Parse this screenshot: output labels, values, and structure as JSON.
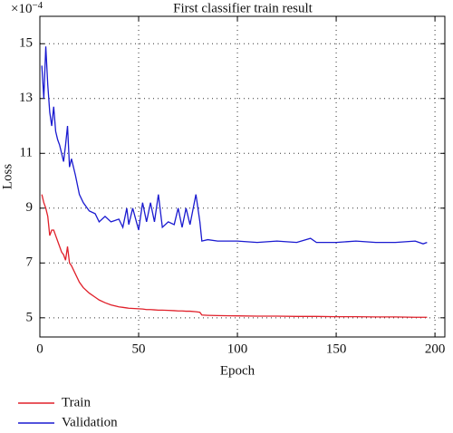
{
  "chart_data": {
    "type": "line",
    "title": "First classifier train result",
    "x_label": "Epoch",
    "y_label": "Loss",
    "y_offset_text": "×10",
    "y_offset_exponent": "−4",
    "x": [
      1,
      2,
      3,
      4,
      5,
      6,
      7,
      8,
      9,
      10,
      11,
      12,
      13,
      14,
      15,
      16,
      18,
      20,
      22,
      25,
      28,
      30,
      33,
      36,
      40,
      42,
      44,
      45,
      47,
      50,
      52,
      54,
      56,
      58,
      60,
      62,
      65,
      68,
      70,
      72,
      74,
      76,
      79,
      81,
      82,
      85,
      90,
      100,
      110,
      120,
      130,
      137,
      140,
      150,
      160,
      170,
      180,
      190,
      194,
      196
    ],
    "series": [
      {
        "name": "Train",
        "color": "#e0202a",
        "values": [
          9.5,
          9.2,
          9.0,
          8.7,
          8.0,
          8.2,
          8.2,
          8.0,
          7.8,
          7.6,
          7.4,
          7.3,
          7.1,
          7.6,
          7.0,
          6.9,
          6.6,
          6.3,
          6.1,
          5.9,
          5.75,
          5.65,
          5.55,
          5.47,
          5.4,
          5.38,
          5.36,
          5.35,
          5.34,
          5.33,
          5.32,
          5.3,
          5.3,
          5.29,
          5.28,
          5.28,
          5.27,
          5.26,
          5.25,
          5.25,
          5.24,
          5.24,
          5.22,
          5.2,
          5.1,
          5.09,
          5.08,
          5.07,
          5.06,
          5.06,
          5.05,
          5.05,
          5.05,
          5.04,
          5.04,
          5.03,
          5.03,
          5.02,
          5.02,
          5.02
        ]
      },
      {
        "name": "Validation",
        "color": "#1a1ad0",
        "values": [
          14.2,
          13.0,
          14.9,
          13.5,
          12.5,
          12.0,
          12.7,
          11.8,
          11.5,
          11.3,
          11.0,
          10.7,
          11.3,
          12.0,
          10.5,
          10.8,
          10.2,
          9.5,
          9.2,
          8.9,
          8.8,
          8.5,
          8.7,
          8.5,
          8.6,
          8.3,
          9.0,
          8.4,
          9.0,
          8.2,
          9.2,
          8.5,
          9.2,
          8.5,
          9.5,
          8.3,
          8.5,
          8.4,
          9.0,
          8.3,
          9.0,
          8.4,
          9.5,
          8.5,
          7.8,
          7.85,
          7.8,
          7.8,
          7.75,
          7.8,
          7.75,
          7.9,
          7.75,
          7.75,
          7.8,
          7.75,
          7.75,
          7.8,
          7.7,
          7.75
        ]
      }
    ],
    "xlim": [
      0,
      205
    ],
    "ylim": [
      4.3,
      16
    ],
    "xticks": [
      0,
      50,
      100,
      150,
      200
    ],
    "yticks": [
      5,
      7,
      9,
      11,
      13,
      15
    ],
    "grid": true,
    "legend": "below"
  }
}
